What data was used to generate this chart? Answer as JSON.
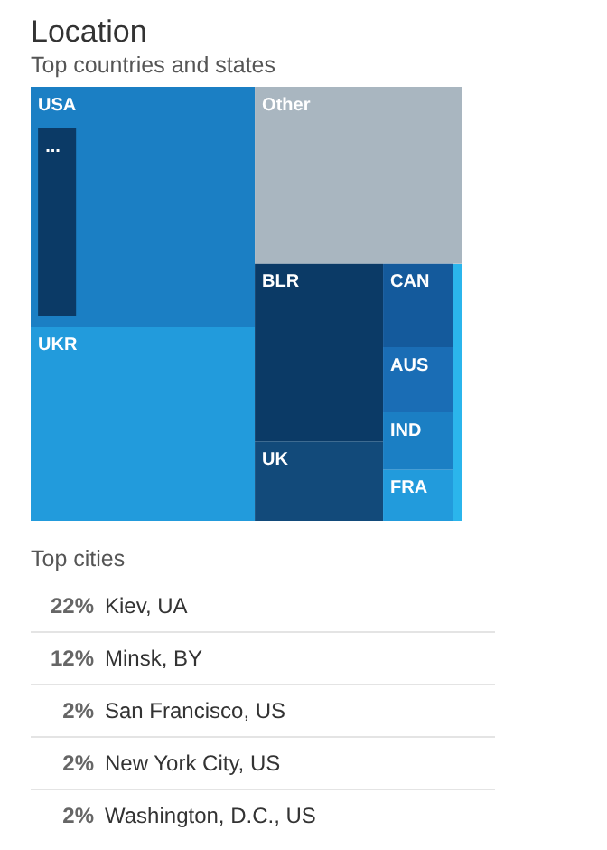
{
  "chart_data": [
    {
      "type": "other",
      "title": "Location",
      "subtitle": "Top countries and states",
      "categories": [
        "USA",
        "...",
        "Other",
        "UKR",
        "BLR",
        "UK",
        "CAN",
        "AUS",
        "IND",
        "FRA"
      ],
      "colors": [
        "#1b7fc4",
        "#0b3a66",
        "#a9b6c0",
        "#229bdc",
        "#0b3a66",
        "#124a7a",
        "#145a9c",
        "#1a6db5",
        "#1b7fc4",
        "#229bdc"
      ]
    },
    {
      "type": "other",
      "title": "Top cities",
      "categories": [
        "Kiev, UA",
        "Minsk, BY",
        "San Francisco, US",
        "New York City, US",
        "Washington, D.C., US"
      ],
      "values": [
        22,
        12,
        2,
        2,
        2
      ],
      "value_labels": [
        "22%",
        "12%",
        "2%",
        "2%",
        "2%"
      ]
    }
  ]
}
